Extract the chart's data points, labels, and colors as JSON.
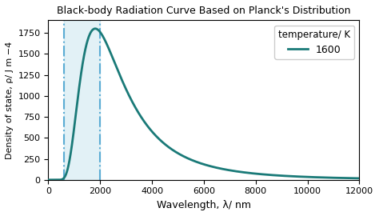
{
  "title": "Black-body Radiation Curve Based on Planck's Distribution",
  "xlabel": "Wavelength, λ/ nm",
  "ylabel": "Density of state, ρ/ J m −4",
  "temperature": 1600,
  "legend_title": "temperature/ K",
  "line_color": "#1a7a78",
  "line_width": 2.0,
  "vline1_x": 600,
  "vline2_x": 1980,
  "vline_color": "#5bacd4",
  "vline_style": "-.",
  "vline_linewidth": 1.5,
  "shading_color": "#add8e6",
  "shading_alpha": 0.35,
  "xlim": [
    0,
    12000
  ],
  "ylim": [
    0,
    1900
  ],
  "xticks": [
    0,
    2000,
    4000,
    6000,
    8000,
    10000,
    12000
  ],
  "yticks": [
    0,
    250,
    500,
    750,
    1000,
    1250,
    1500,
    1750
  ],
  "figsize": [
    4.74,
    2.7
  ],
  "dpi": 100,
  "peak_value": 1800
}
